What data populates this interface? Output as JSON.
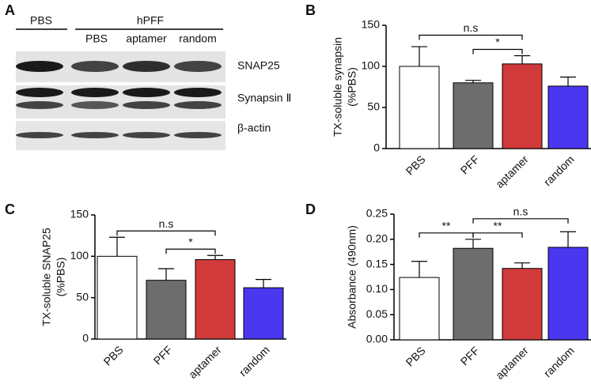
{
  "panel_labels": [
    "A",
    "B",
    "C",
    "D"
  ],
  "blot": {
    "groups": [
      "PBS",
      "hPFF"
    ],
    "lanes": [
      "PBS",
      "aptamer",
      "random"
    ],
    "bands": [
      "SNAP25",
      "Synapsin Ⅱ",
      "β-actin"
    ]
  },
  "chart_data": [
    {
      "type": "bar",
      "ylabel": [
        "TX-soluble synapsin",
        "(%PBS)"
      ],
      "categories": [
        "PBS",
        "PFF",
        "aptamer",
        "random"
      ],
      "values": [
        100,
        80,
        103,
        76
      ],
      "errors": [
        24,
        3,
        10,
        11
      ],
      "colors": [
        "#ffffff",
        "#6d6d6d",
        "#d03a3a",
        "#4b37f0"
      ],
      "ylim": [
        0,
        150
      ],
      "yticks": [
        0,
        50,
        100,
        150
      ],
      "annotations": [
        {
          "text": "*",
          "between": [
            "PFF",
            "aptamer"
          ]
        },
        {
          "text": "n.s",
          "between": [
            "PBS",
            "aptamer"
          ]
        }
      ]
    },
    {
      "type": "bar",
      "ylabel": [
        "TX-soluble SNAP25",
        "(%PBS)"
      ],
      "categories": [
        "PBS",
        "PFF",
        "aptamer",
        "random"
      ],
      "values": [
        100,
        71,
        96,
        62
      ],
      "errors": [
        23,
        14,
        5,
        10
      ],
      "colors": [
        "#ffffff",
        "#6d6d6d",
        "#d03a3a",
        "#4b37f0"
      ],
      "ylim": [
        0,
        150
      ],
      "yticks": [
        0,
        50,
        100,
        150
      ],
      "annotations": [
        {
          "text": "*",
          "between": [
            "PFF",
            "aptamer"
          ]
        },
        {
          "text": "n.s",
          "between": [
            "PBS",
            "aptamer"
          ]
        }
      ]
    },
    {
      "type": "bar",
      "ylabel": [
        "Absorbance (490nm)"
      ],
      "categories": [
        "PBS",
        "PFF",
        "aptamer",
        "random"
      ],
      "values": [
        0.124,
        0.182,
        0.142,
        0.184
      ],
      "errors": [
        0.032,
        0.018,
        0.011,
        0.031
      ],
      "colors": [
        "#ffffff",
        "#6d6d6d",
        "#d03a3a",
        "#4b37f0"
      ],
      "ylim": [
        0,
        0.25
      ],
      "yticks": [
        {
          "value": 0,
          "label": "0.00"
        },
        0.05,
        {
          "value": 0.1,
          "label": "0.10"
        },
        0.15,
        {
          "value": 0.2,
          "label": "0.20"
        },
        0.25
      ],
      "annotations": [
        {
          "text": "**",
          "between": [
            "PBS",
            "PFF"
          ]
        },
        {
          "text": "**",
          "between": [
            "PFF",
            "aptamer"
          ]
        },
        {
          "text": "n.s",
          "between": [
            "PFF",
            "random"
          ]
        }
      ]
    }
  ]
}
